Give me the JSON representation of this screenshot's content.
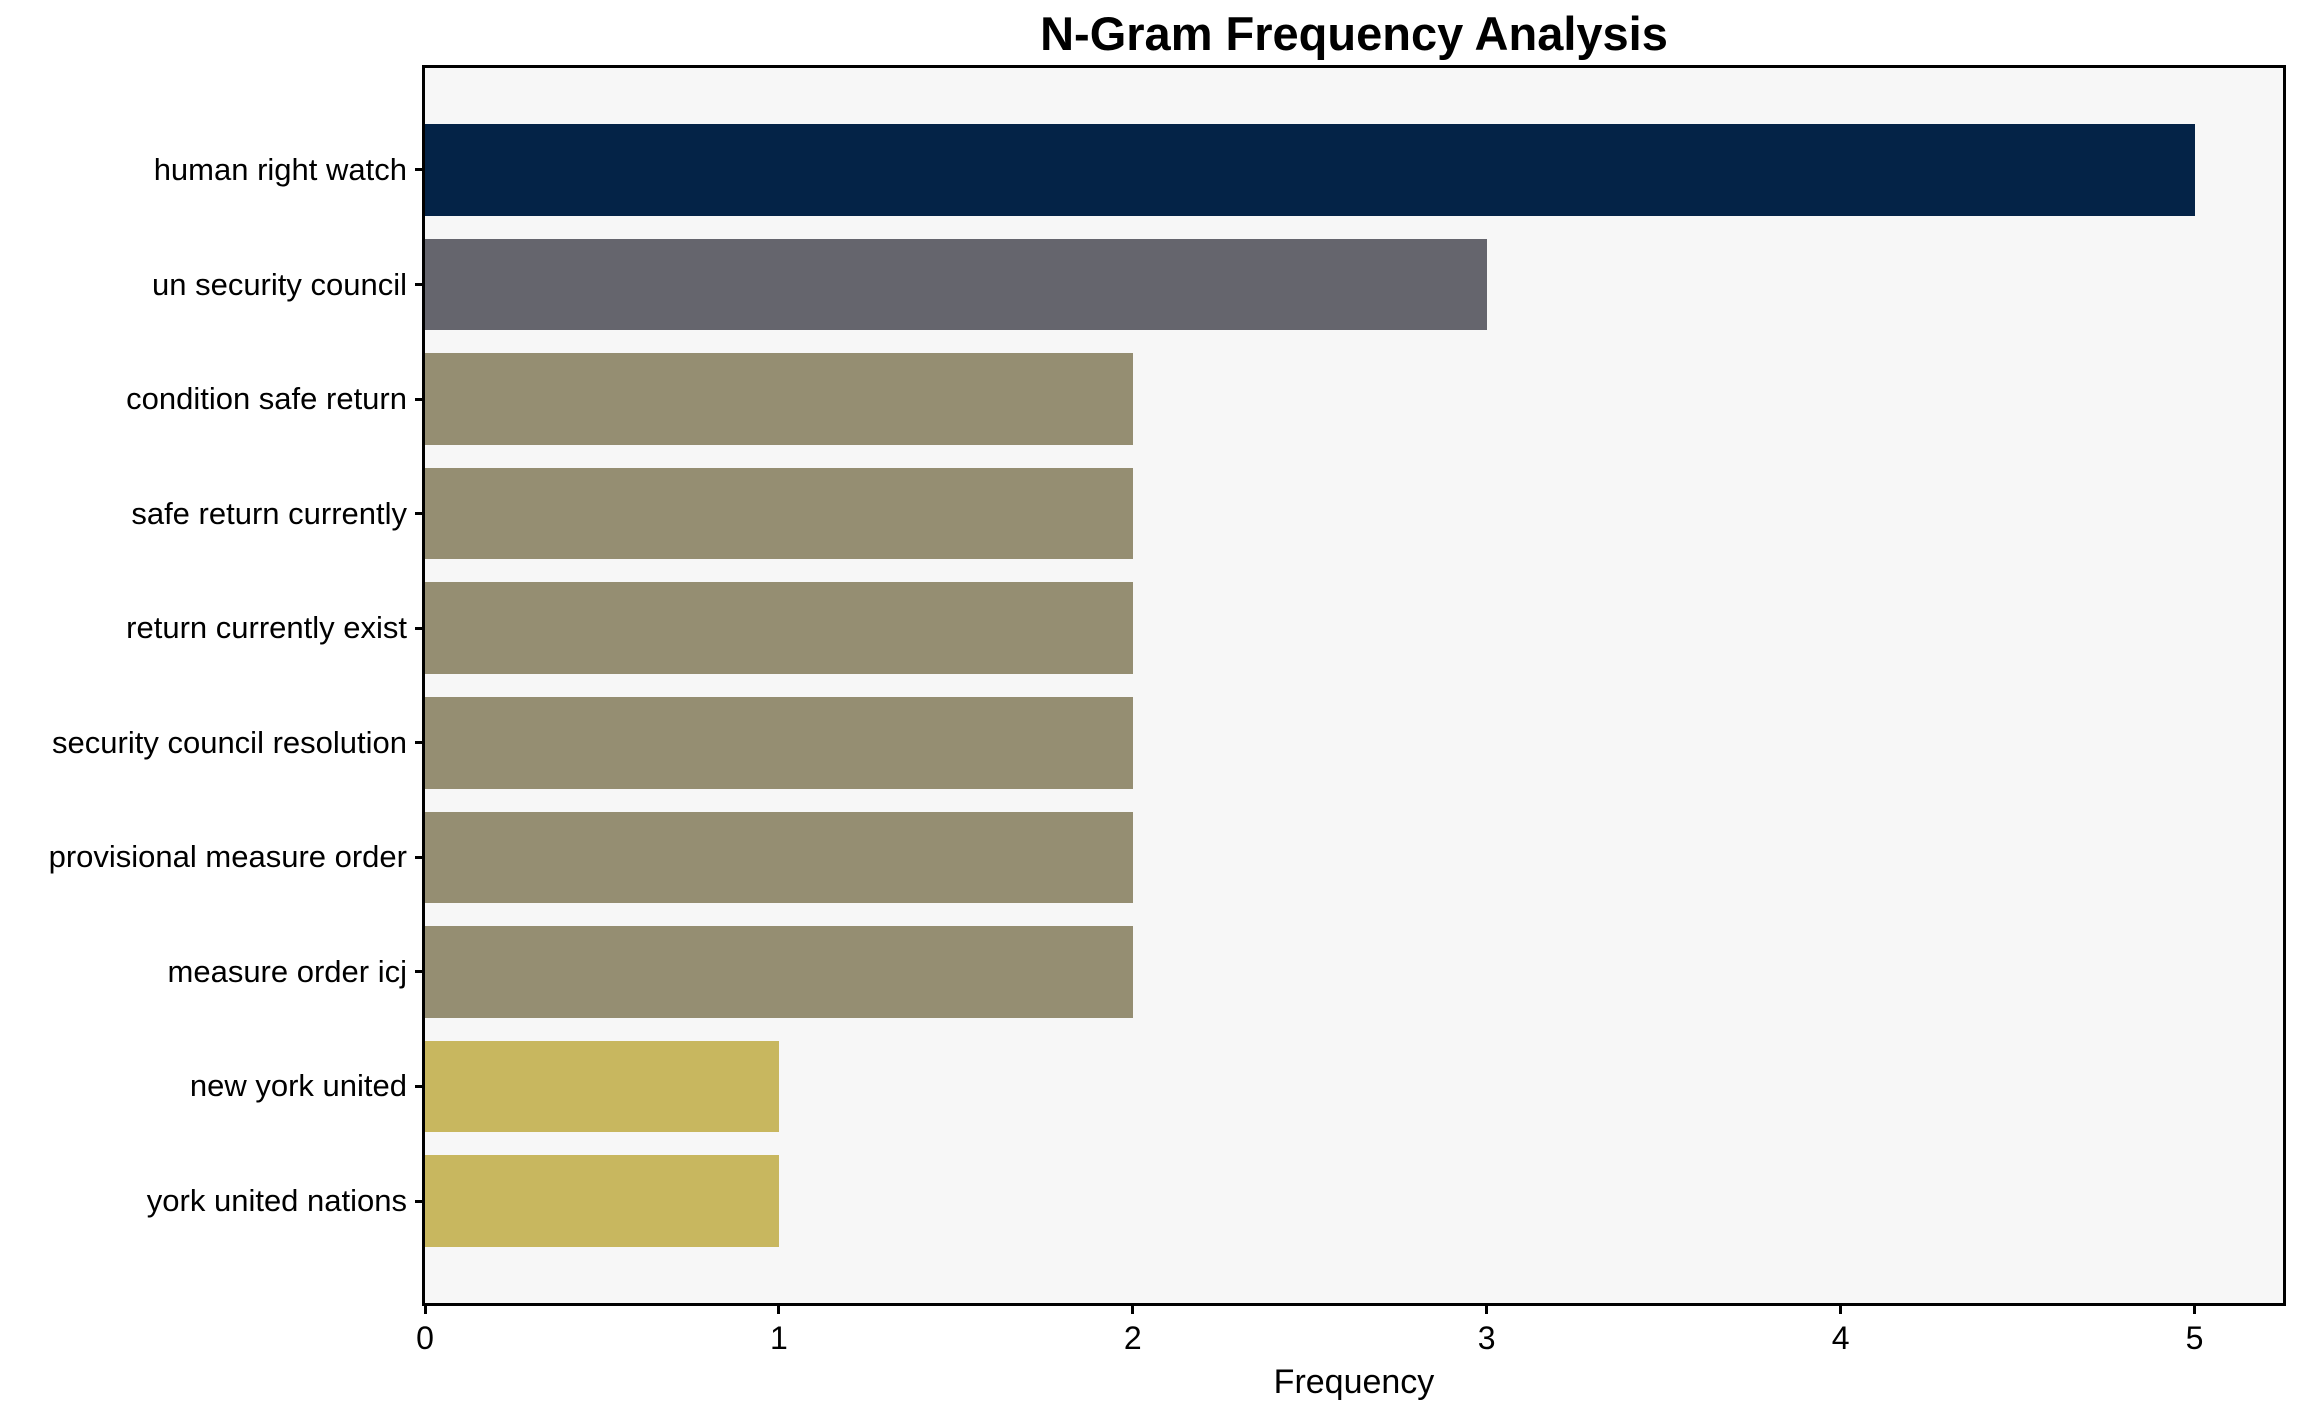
{
  "chart_data": {
    "type": "bar",
    "orientation": "horizontal",
    "title": "N-Gram Frequency Analysis",
    "xlabel": "Frequency",
    "ylabel": "",
    "categories": [
      "human right watch",
      "un security council",
      "condition safe return",
      "safe return currently",
      "return currently exist",
      "security council resolution",
      "provisional measure order",
      "measure order icj",
      "new york united",
      "york united nations"
    ],
    "values": [
      5,
      3,
      2,
      2,
      2,
      2,
      2,
      2,
      1,
      1
    ],
    "bar_colors": [
      "#042347",
      "#65656d",
      "#958e72",
      "#958e72",
      "#958e72",
      "#958e72",
      "#958e72",
      "#958e72",
      "#c8b75f",
      "#c8b75f"
    ],
    "xticks": [
      0,
      1,
      2,
      3,
      4,
      5
    ],
    "xlim": [
      0,
      5.25
    ],
    "grid": false,
    "legend": "none",
    "plot_background": "#f7f7f7",
    "figure_background": "#ffffff",
    "spine_color": "#000000"
  }
}
